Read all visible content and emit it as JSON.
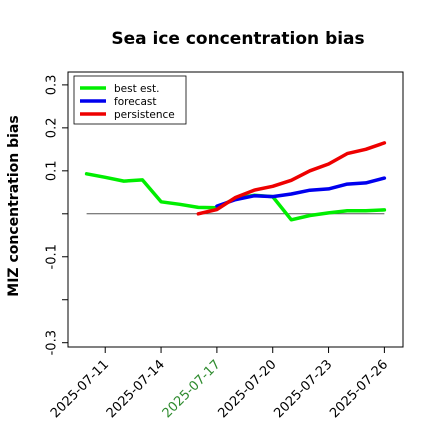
{
  "chart_data": {
    "type": "line",
    "title": "Sea ice concentration bias",
    "ylabel": "MIZ concentration bias",
    "xlabel": "",
    "ylim": [
      -0.31,
      0.33
    ],
    "yticks": [
      {
        "value": 0.3,
        "label": "0.3"
      },
      {
        "value": 0.2,
        "label": "0.2"
      },
      {
        "value": 0.1,
        "label": "0.1"
      },
      {
        "value": 0.0,
        "label": ""
      },
      {
        "value": -0.1,
        "label": "-0.1"
      },
      {
        "value": -0.2,
        "label": ""
      },
      {
        "value": -0.3,
        "label": "-0.3"
      }
    ],
    "xlim": [
      "2025-07-09",
      "2025-07-27"
    ],
    "xticks": [
      {
        "date": "2025-07-11",
        "label": "2025-07-11",
        "color": "#000000"
      },
      {
        "date": "2025-07-14",
        "label": "2025-07-14",
        "color": "#000000"
      },
      {
        "date": "2025-07-17",
        "label": "2025-07-17",
        "color": "#2e8b2e"
      },
      {
        "date": "2025-07-20",
        "label": "2025-07-20",
        "color": "#000000"
      },
      {
        "date": "2025-07-23",
        "label": "2025-07-23",
        "color": "#000000"
      },
      {
        "date": "2025-07-26",
        "label": "2025-07-26",
        "color": "#000000"
      }
    ],
    "zero_line": true,
    "legend_position": "top-left",
    "series": [
      {
        "name": "best est.",
        "color": "#00ee00",
        "points": [
          [
            "2025-07-10",
            0.093
          ],
          [
            "2025-07-11",
            0.085
          ],
          [
            "2025-07-12",
            0.076
          ],
          [
            "2025-07-13",
            0.079
          ],
          [
            "2025-07-14",
            0.028
          ],
          [
            "2025-07-15",
            0.022
          ],
          [
            "2025-07-16",
            0.015
          ],
          [
            "2025-07-17",
            0.014
          ],
          [
            "2025-07-18",
            0.036
          ],
          [
            "2025-07-19",
            0.043
          ],
          [
            "2025-07-20",
            0.04
          ],
          [
            "2025-07-21",
            -0.014
          ],
          [
            "2025-07-22",
            -0.004
          ],
          [
            "2025-07-23",
            0.002
          ],
          [
            "2025-07-24",
            0.007
          ],
          [
            "2025-07-25",
            0.007
          ],
          [
            "2025-07-26",
            0.009
          ]
        ]
      },
      {
        "name": "forecast",
        "color": "#0000ee",
        "points": [
          [
            "2025-07-17",
            0.018
          ],
          [
            "2025-07-18",
            0.033
          ],
          [
            "2025-07-19",
            0.042
          ],
          [
            "2025-07-20",
            0.04
          ],
          [
            "2025-07-21",
            0.046
          ],
          [
            "2025-07-22",
            0.055
          ],
          [
            "2025-07-23",
            0.058
          ],
          [
            "2025-07-24",
            0.069
          ],
          [
            "2025-07-25",
            0.072
          ],
          [
            "2025-07-26",
            0.083
          ]
        ]
      },
      {
        "name": "persistence",
        "color": "#ee0000",
        "points": [
          [
            "2025-07-16",
            0.0
          ],
          [
            "2025-07-17",
            0.01
          ],
          [
            "2025-07-18",
            0.038
          ],
          [
            "2025-07-19",
            0.055
          ],
          [
            "2025-07-20",
            0.064
          ],
          [
            "2025-07-21",
            0.078
          ],
          [
            "2025-07-22",
            0.1
          ],
          [
            "2025-07-23",
            0.116
          ],
          [
            "2025-07-24",
            0.14
          ],
          [
            "2025-07-25",
            0.15
          ],
          [
            "2025-07-26",
            0.165
          ]
        ]
      }
    ]
  }
}
